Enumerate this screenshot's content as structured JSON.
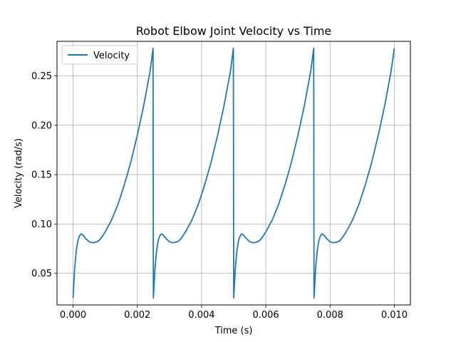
{
  "chart_data": {
    "type": "line",
    "title": "Robot Elbow Joint Velocity vs Time",
    "xlabel": "Time (s)",
    "ylabel": "Velocity (rad/s)",
    "xlim": [
      -0.0005,
      0.0105
    ],
    "ylim": [
      0.018,
      0.285
    ],
    "xticks": [
      0.0,
      0.002,
      0.004,
      0.006,
      0.008,
      0.01
    ],
    "xtick_labels": [
      "0.000",
      "0.002",
      "0.004",
      "0.006",
      "0.008",
      "0.010"
    ],
    "yticks": [
      0.05,
      0.1,
      0.15,
      0.2,
      0.25
    ],
    "ytick_labels": [
      "0.05",
      "0.10",
      "0.15",
      "0.20",
      "0.25"
    ],
    "grid": true,
    "legend_position": "top-left",
    "series": [
      {
        "name": "Velocity",
        "color": "#1f77b4",
        "x": [
          0.0,
          5e-05,
          0.0001,
          0.00015,
          0.0002,
          0.00025,
          0.0003,
          0.0004,
          0.0005,
          0.0006,
          0.0007,
          0.0008,
          0.0009,
          0.001,
          0.0012,
          0.0014,
          0.0016,
          0.0018,
          0.002,
          0.0022,
          0.0024,
          0.00249,
          0.0025,
          0.00255,
          0.0026,
          0.00265,
          0.0027,
          0.00275,
          0.0028,
          0.0029,
          0.003,
          0.0031,
          0.0032,
          0.0033,
          0.0034,
          0.0035,
          0.0037,
          0.0039,
          0.0041,
          0.0043,
          0.0045,
          0.0047,
          0.0049,
          0.00499,
          0.005,
          0.00505,
          0.0051,
          0.00515,
          0.0052,
          0.00525,
          0.0053,
          0.0054,
          0.0055,
          0.0056,
          0.0057,
          0.0058,
          0.0059,
          0.006,
          0.0062,
          0.0064,
          0.0066,
          0.0068,
          0.007,
          0.0072,
          0.0074,
          0.00749,
          0.0075,
          0.00755,
          0.0076,
          0.00765,
          0.0077,
          0.00775,
          0.0078,
          0.0079,
          0.008,
          0.0081,
          0.0082,
          0.0083,
          0.0084,
          0.0085,
          0.0087,
          0.0089,
          0.0091,
          0.0093,
          0.0095,
          0.0097,
          0.0099,
          0.01
        ],
        "y": [
          0.025,
          0.055,
          0.073,
          0.083,
          0.088,
          0.09,
          0.089,
          0.085,
          0.082,
          0.081,
          0.0815,
          0.083,
          0.087,
          0.092,
          0.104,
          0.12,
          0.14,
          0.163,
          0.19,
          0.22,
          0.255,
          0.278,
          0.025,
          0.055,
          0.073,
          0.083,
          0.088,
          0.09,
          0.089,
          0.085,
          0.082,
          0.081,
          0.0815,
          0.083,
          0.087,
          0.092,
          0.104,
          0.12,
          0.14,
          0.163,
          0.19,
          0.22,
          0.255,
          0.278,
          0.025,
          0.055,
          0.073,
          0.083,
          0.088,
          0.09,
          0.089,
          0.085,
          0.082,
          0.081,
          0.0815,
          0.083,
          0.087,
          0.092,
          0.104,
          0.12,
          0.14,
          0.163,
          0.19,
          0.22,
          0.255,
          0.278,
          0.025,
          0.055,
          0.073,
          0.083,
          0.088,
          0.09,
          0.089,
          0.085,
          0.082,
          0.081,
          0.0815,
          0.083,
          0.087,
          0.092,
          0.104,
          0.12,
          0.14,
          0.163,
          0.19,
          0.22,
          0.255,
          0.278
        ]
      }
    ]
  }
}
